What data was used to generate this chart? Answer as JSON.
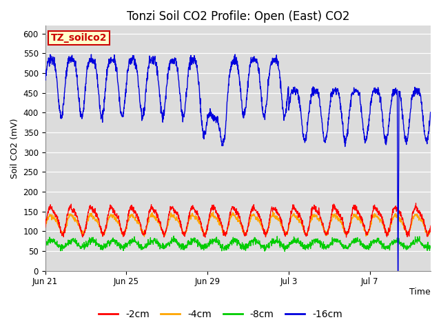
{
  "title": "Tonzi Soil CO2 Profile: Open (East) CO2",
  "ylabel": "Soil CO2 (mV)",
  "xlabel": "Time",
  "ylim": [
    0,
    620
  ],
  "yticks": [
    0,
    50,
    100,
    150,
    200,
    250,
    300,
    350,
    400,
    450,
    500,
    550,
    600
  ],
  "total_days": 19.0,
  "xtick_positions": [
    0,
    4,
    8,
    12,
    16
  ],
  "xtick_labels": [
    "Jun 21",
    "Jun 25",
    "Jun 29",
    "Jul 3",
    "Jul 7"
  ],
  "bg_color": "#dcdcdc",
  "grid_color": "#ffffff",
  "series": {
    "blue": {
      "color": "#0000dd",
      "label": "-16cm"
    },
    "red": {
      "color": "#ff0000",
      "label": "-2cm"
    },
    "orange": {
      "color": "#ffa500",
      "label": "-4cm"
    },
    "green": {
      "color": "#00cc00",
      "label": "-8cm"
    }
  },
  "legend_box": {
    "text": "TZ_soilco2",
    "bg_color": "#ffffcc",
    "border_color": "#cc0000",
    "text_color": "#cc0000",
    "fontsize": 10,
    "fontweight": "bold"
  },
  "legend_fontsize": 10,
  "title_fontsize": 12
}
